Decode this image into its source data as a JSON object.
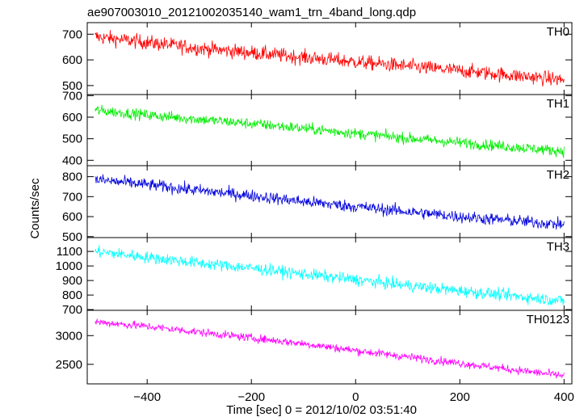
{
  "chart_data": {
    "type": "line",
    "title": "ae907003010_20121002035140_wam1_trn_4band_long.qdp",
    "xlabel": "Time [sec] 0 = 2012/10/02 03:51:40",
    "ylabel": "Counts/sec",
    "xlim": [
      -515,
      415
    ],
    "x_ticks": [
      -400,
      -200,
      0,
      200,
      400
    ],
    "x_tick_labels": [
      "−400",
      "−200",
      "0",
      "200",
      "400"
    ],
    "panels": [
      {
        "name": "TH0",
        "color": "#ff0000",
        "ylim": [
          465,
          745
        ],
        "y_ticks": [
          500,
          600,
          700
        ],
        "x": [
          -500,
          -400,
          -300,
          -200,
          -100,
          0,
          100,
          200,
          300,
          400
        ],
        "y": [
          690,
          668,
          645,
          628,
          610,
          592,
          575,
          558,
          540,
          522
        ],
        "noise": 28
      },
      {
        "name": "TH1",
        "color": "#00ee00",
        "ylim": [
          375,
          705
        ],
        "y_ticks": [
          400,
          500,
          600,
          700
        ],
        "x": [
          -500,
          -400,
          -300,
          -200,
          -100,
          0,
          100,
          200,
          300,
          400
        ],
        "y": [
          632,
          610,
          590,
          570,
          548,
          525,
          502,
          482,
          462,
          442
        ],
        "noise": 25
      },
      {
        "name": "TH2",
        "color": "#0000dd",
        "ylim": [
          495,
          855
        ],
        "y_ticks": [
          500,
          600,
          700,
          800
        ],
        "x": [
          -500,
          -400,
          -300,
          -200,
          -100,
          0,
          100,
          200,
          300,
          400
        ],
        "y": [
          785,
          760,
          730,
          705,
          675,
          650,
          625,
          600,
          580,
          560
        ],
        "noise": 30
      },
      {
        "name": "TH3",
        "color": "#00ffff",
        "ylim": [
          695,
          1195
        ],
        "y_ticks": [
          700,
          800,
          900,
          1000,
          1100
        ],
        "x": [
          -500,
          -400,
          -300,
          -200,
          -100,
          0,
          100,
          200,
          300,
          400
        ],
        "y": [
          1100,
          1060,
          1020,
          985,
          945,
          905,
          865,
          830,
          795,
          760
        ],
        "noise": 40
      },
      {
        "name": "TH0123",
        "color": "#ff00ff",
        "ylim": [
          2160,
          3440
        ],
        "y_ticks": [
          2500,
          3000
        ],
        "x": [
          -500,
          -400,
          -300,
          -200,
          -100,
          0,
          100,
          200,
          300,
          400
        ],
        "y": [
          3240,
          3160,
          3060,
          2960,
          2860,
          2740,
          2630,
          2520,
          2410,
          2300
        ],
        "noise": 70
      }
    ]
  }
}
